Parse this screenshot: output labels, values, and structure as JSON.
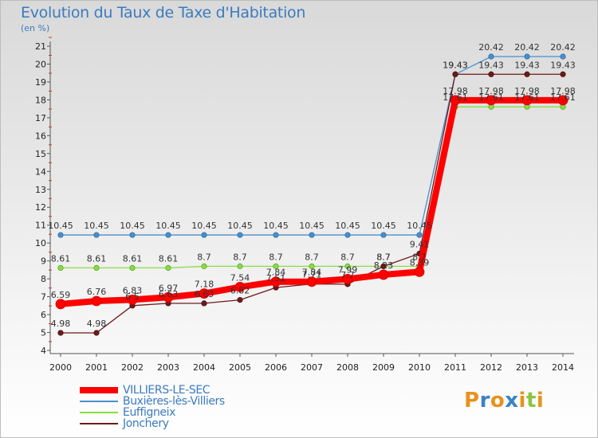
{
  "title": "Evolution du Taux de Taxe d'Habitation",
  "unit": "(en %)",
  "chart_data": {
    "type": "line",
    "x": [
      "2000",
      "2001",
      "2002",
      "2003",
      "2004",
      "2005",
      "2006",
      "2007",
      "2008",
      "2009",
      "2010",
      "2011",
      "2012",
      "2013",
      "2014"
    ],
    "ylim": [
      4,
      21
    ],
    "yticks": [
      4,
      5,
      6,
      7,
      8,
      9,
      10,
      11,
      12,
      13,
      14,
      15,
      16,
      17,
      18,
      19,
      20,
      21
    ],
    "grid": false,
    "legend_position": "bottom-left",
    "series": [
      {
        "name": "VILLIERS-LE-SEC",
        "color": "#ff0000",
        "values": [
          6.59,
          6.76,
          6.83,
          6.97,
          7.18,
          7.54,
          7.84,
          7.84,
          7.99,
          8.23,
          8.39,
          17.98,
          17.98,
          17.98,
          17.98
        ],
        "labels": [
          "6.59",
          "6.76",
          "6.83",
          "6.97",
          "7.18",
          "7.54",
          "7.84",
          "7.84",
          "7.99",
          "8.23",
          "8.39",
          "17.98",
          "17.98",
          "17.98",
          "17.98"
        ]
      },
      {
        "name": "Buxières-lès-Villiers",
        "color": "#4a8fcb",
        "values": [
          10.45,
          10.45,
          10.45,
          10.45,
          10.45,
          10.45,
          10.45,
          10.45,
          10.45,
          10.45,
          10.45,
          19.43,
          20.42,
          20.42,
          20.42
        ],
        "labels": [
          "10.45",
          "10.45",
          "10.45",
          "10.45",
          "10.45",
          "10.45",
          "10.45",
          "10.45",
          "10.45",
          "10.45",
          "10.45",
          "19.43",
          "20.42",
          "20.42",
          "20.42"
        ]
      },
      {
        "name": "Euffigneix",
        "color": "#88dd44",
        "values": [
          8.61,
          8.61,
          8.61,
          8.61,
          8.7,
          8.7,
          8.7,
          8.7,
          8.7,
          8.7,
          8.7,
          17.61,
          17.61,
          17.61,
          17.61
        ],
        "labels": [
          "8.61",
          "8.61",
          "8.61",
          "8.61",
          "8.7",
          "8.7",
          "8.7",
          "8.7",
          "8.7",
          "8.7",
          "8.7",
          "17.61",
          "17.61",
          "17.61",
          "17.61"
        ]
      },
      {
        "name": "Jonchery",
        "color": "#6e1a1a",
        "values": [
          4.98,
          4.98,
          6.5,
          6.63,
          6.63,
          6.82,
          7.51,
          7.71,
          7.7,
          8.7,
          9.41,
          19.43,
          19.43,
          19.43,
          19.43
        ],
        "labels": [
          "4.98",
          "4.98",
          "6.5",
          "6.63",
          "6.63",
          "6.82",
          "7.51",
          "7.71",
          "7.7",
          "8.7",
          "9.41",
          "19.43",
          "19.43",
          "19.43",
          "19.43"
        ]
      }
    ]
  },
  "logo": {
    "letters": [
      "P",
      "r",
      "o",
      "x",
      "i",
      "t",
      "i"
    ],
    "colors": [
      "#e8921c",
      "#3a82c4",
      "#e8921c",
      "#3a82c4",
      "#e8921c",
      "#88c540",
      "#e8921c"
    ]
  }
}
